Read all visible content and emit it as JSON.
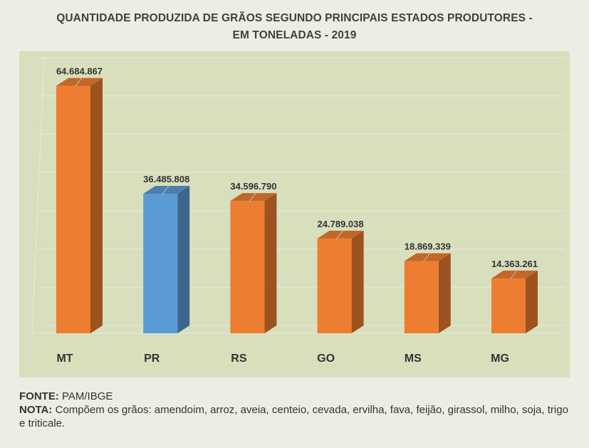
{
  "title_lines": [
    "QUANTIDADE PRODUZIDA DE GRÃOS SEGUNDO PRINCIPAIS ESTADOS PRODUTORES -",
    "EM TONELADAS - 2019"
  ],
  "chart_data": {
    "type": "bar",
    "title": "QUANTIDADE PRODUZIDA DE GRÃOS SEGUNDO PRINCIPAIS ESTADOS PRODUTORES - EM TONELADAS - 2019",
    "categories": [
      "MT",
      "PR",
      "RS",
      "GO",
      "MS",
      "MG"
    ],
    "values": [
      64684867,
      36485808,
      34596790,
      24789038,
      18869339,
      14363261
    ],
    "value_labels": [
      "64.684.867",
      "36.485.808",
      "34.596.790",
      "24.789.038",
      "18.869.339",
      "14.363.261"
    ],
    "highlight_category": "PR",
    "ylim": [
      0,
      70000000
    ],
    "grid": true,
    "legend": "none",
    "colors": {
      "bar": "#ed7d31",
      "highlight": "#5b9bd5",
      "plot_background": "#d8dfbd"
    }
  },
  "footer": {
    "source_label": "FONTE:",
    "source_text": "PAM/IBGE",
    "note_label": "NOTA:",
    "note_text": "Compõem os grãos: amendoim, arroz, aveia, centeio, cevada, ervilha, fava, feijão, girassol, milho, soja, trigo e triticale."
  }
}
